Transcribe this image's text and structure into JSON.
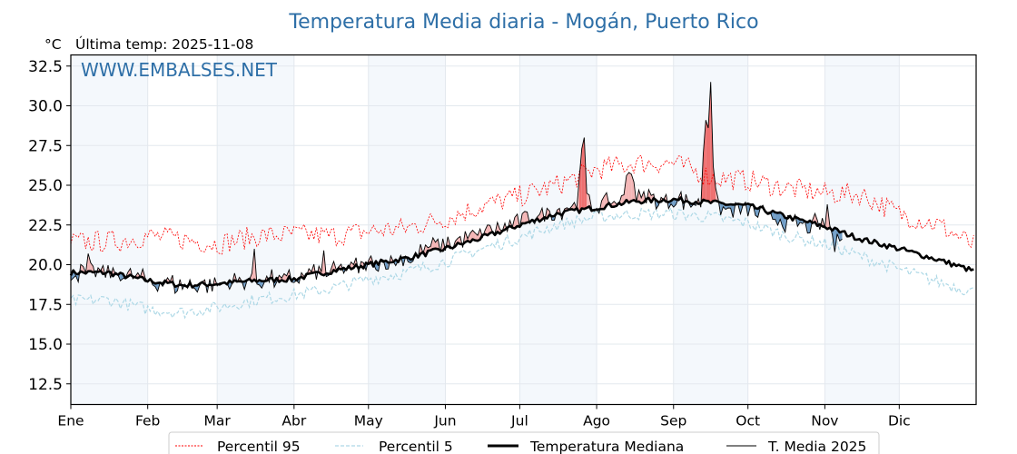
{
  "chart_data": {
    "type": "line",
    "title": "Temperatura Media diaria - Mogán, Puerto Rico",
    "subtitle": "Última temp: 2025-11-08",
    "unit_label": "°C",
    "watermark": "WWW.EMBALSES.NET",
    "xlabel": "",
    "ylabel": "°C",
    "ylim": [
      11.2,
      33.2
    ],
    "yticks": [
      "12.5",
      "15.0",
      "17.5",
      "20.0",
      "22.5",
      "25.0",
      "27.5",
      "30.0",
      "32.5"
    ],
    "ytick_values": [
      12.5,
      15.0,
      17.5,
      20.0,
      22.5,
      25.0,
      27.5,
      30.0,
      32.5
    ],
    "xticks": [
      "Ene",
      "Feb",
      "Mar",
      "Abr",
      "May",
      "Jun",
      "Jul",
      "Ago",
      "Sep",
      "Oct",
      "Nov",
      "Dic"
    ],
    "xtick_days": [
      0,
      31,
      59,
      90,
      120,
      151,
      181,
      212,
      243,
      273,
      304,
      334
    ],
    "xlim_days": [
      0,
      365
    ],
    "grid": true,
    "shaded_months": [
      "Ene",
      "Mar",
      "May",
      "Jul",
      "Sep",
      "Nov"
    ],
    "legend_position": "bottom-center",
    "legend": [
      {
        "label": "Percentil 95",
        "color": "#ff0000",
        "style": "dotted"
      },
      {
        "label": "Percentil 5",
        "color": "#add8e6",
        "style": "dashed"
      },
      {
        "label": "Temperatura Mediana",
        "color": "#000000",
        "style": "solid-thick"
      },
      {
        "label": "T. Media 2025",
        "color": "#000000",
        "style": "solid-thin"
      }
    ],
    "colors": {
      "above_fill": "#f08080",
      "below_fill": "#4682b4",
      "p95": "#ff0000",
      "p5": "#add8e6",
      "median": "#000000",
      "current": "#000000",
      "shade": "#f4f8fc",
      "grid": "#e3e8ee"
    },
    "series_keypoints": {
      "note": "values in °C at day-of-year (0 = 1 Jan); daily values interpolated with small noise",
      "median": [
        [
          0,
          19.5
        ],
        [
          15,
          19.5
        ],
        [
          31,
          19.0
        ],
        [
          45,
          18.7
        ],
        [
          59,
          18.8
        ],
        [
          75,
          19.0
        ],
        [
          90,
          19.1
        ],
        [
          105,
          19.6
        ],
        [
          120,
          20.0
        ],
        [
          135,
          20.4
        ],
        [
          151,
          21.0
        ],
        [
          166,
          21.7
        ],
        [
          181,
          22.5
        ],
        [
          196,
          23.2
        ],
        [
          212,
          23.6
        ],
        [
          228,
          24.0
        ],
        [
          243,
          24.1
        ],
        [
          258,
          23.9
        ],
        [
          273,
          23.7
        ],
        [
          289,
          23.0
        ],
        [
          304,
          22.4
        ],
        [
          319,
          21.6
        ],
        [
          334,
          21.0
        ],
        [
          350,
          20.3
        ],
        [
          364,
          19.6
        ]
      ],
      "p95": [
        [
          0,
          21.4
        ],
        [
          20,
          21.5
        ],
        [
          31,
          21.8
        ],
        [
          45,
          21.6
        ],
        [
          59,
          21.3
        ],
        [
          75,
          21.8
        ],
        [
          90,
          21.9
        ],
        [
          105,
          21.8
        ],
        [
          120,
          22.1
        ],
        [
          135,
          22.3
        ],
        [
          151,
          22.9
        ],
        [
          166,
          23.7
        ],
        [
          181,
          24.3
        ],
        [
          196,
          25.0
        ],
        [
          212,
          26.0
        ],
        [
          228,
          26.4
        ],
        [
          243,
          26.4
        ],
        [
          258,
          25.5
        ],
        [
          273,
          25.3
        ],
        [
          289,
          24.8
        ],
        [
          304,
          24.5
        ],
        [
          319,
          24.4
        ],
        [
          334,
          23.2
        ],
        [
          350,
          22.5
        ],
        [
          364,
          21.2
        ]
      ],
      "p5": [
        [
          0,
          17.7
        ],
        [
          15,
          17.8
        ],
        [
          31,
          17.2
        ],
        [
          45,
          17.0
        ],
        [
          59,
          17.3
        ],
        [
          75,
          17.8
        ],
        [
          90,
          18.1
        ],
        [
          105,
          18.5
        ],
        [
          120,
          19.1
        ],
        [
          135,
          19.5
        ],
        [
          151,
          20.2
        ],
        [
          166,
          21.0
        ],
        [
          181,
          21.7
        ],
        [
          196,
          22.5
        ],
        [
          212,
          23.0
        ],
        [
          228,
          23.2
        ],
        [
          243,
          23.2
        ],
        [
          258,
          23.0
        ],
        [
          273,
          22.6
        ],
        [
          289,
          21.8
        ],
        [
          304,
          21.3
        ],
        [
          319,
          20.5
        ],
        [
          334,
          19.7
        ],
        [
          350,
          18.9
        ],
        [
          364,
          18.3
        ]
      ],
      "current_2025_end_day": 311,
      "current_2025_spikes": [
        [
          7,
          20.7
        ],
        [
          74,
          21.0
        ],
        [
          102,
          20.9
        ],
        [
          176,
          22.1
        ],
        [
          206,
          27.3
        ],
        [
          207,
          28.0
        ],
        [
          225,
          25.8
        ],
        [
          256,
          29.1
        ],
        [
          258,
          31.5
        ],
        [
          305,
          23.8
        ],
        [
          308,
          20.8
        ]
      ]
    }
  }
}
